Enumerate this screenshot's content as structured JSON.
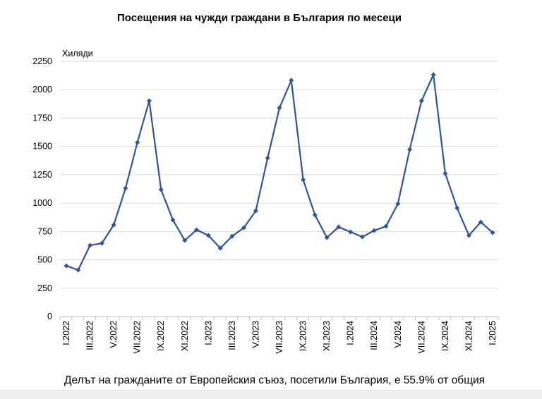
{
  "chart_data": {
    "type": "line",
    "title": "Посещения на чужди граждани в България по месеци",
    "ylabel": "Хиляди",
    "xlabel": "",
    "ylim": [
      0,
      2250
    ],
    "yticks": [
      0,
      250,
      500,
      750,
      1000,
      1250,
      1500,
      1750,
      2000,
      2250
    ],
    "grid": true,
    "x": [
      "I.2022",
      "II.2022",
      "III.2022",
      "IV.2022",
      "V.2022",
      "VI.2022",
      "VII.2022",
      "VIII.2022",
      "IX.2022",
      "X.2022",
      "XI.2022",
      "XII.2022",
      "I.2023",
      "II.2023",
      "III.2023",
      "IV.2023",
      "V.2023",
      "VI.2023",
      "VII.2023",
      "VIII.2023",
      "IX.2023",
      "X.2023",
      "XI.2023",
      "XII.2023",
      "I.2024",
      "II.2024",
      "III.2024",
      "IV.2024",
      "V.2024",
      "VI.2024",
      "VII.2024",
      "VIII.2024",
      "IX.2024",
      "X.2024",
      "XI.2024",
      "XII.2024",
      "I.2025"
    ],
    "xtick_labels": [
      "I.2022",
      "III.2022",
      "V.2022",
      "VII.2022",
      "IX.2022",
      "XI.2022",
      "I.2023",
      "III.2023",
      "V.2023",
      "VII.2023",
      "IX.2023",
      "XI.2023",
      "I.2024",
      "III.2024",
      "V.2024",
      "VII.2024",
      "IX.2024",
      "XI.2024",
      "I.2025"
    ],
    "series": [
      {
        "name": "Посещения",
        "color": "#2f5597",
        "values": [
          447,
          410,
          628,
          646,
          808,
          1131,
          1535,
          1902,
          1119,
          851,
          671,
          764,
          715,
          603,
          708,
          783,
          932,
          1398,
          1840,
          2082,
          1206,
          895,
          696,
          789,
          746,
          702,
          758,
          796,
          994,
          1473,
          1902,
          2132,
          1262,
          957,
          715,
          833,
          740
        ]
      }
    ]
  },
  "footer": "Делът на гражданите от Европейския съюз, посетили България, е 55.9% от общия"
}
